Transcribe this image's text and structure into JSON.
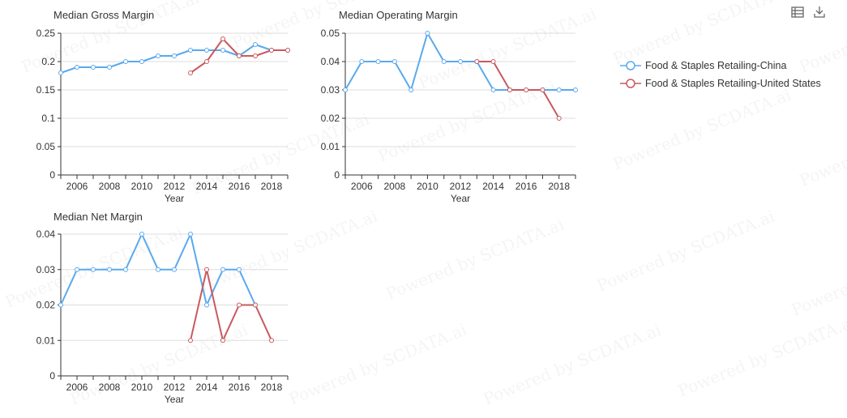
{
  "watermark": "Powered by SCDATA.ai",
  "toolbox": {
    "data_view_icon": "table-icon",
    "save_icon": "download-icon"
  },
  "legend": [
    {
      "label": "Food & Staples Retailing-China",
      "color": "#5aa9ee"
    },
    {
      "label": "Food & Staples Retailing-United States",
      "color": "#c85a5e"
    }
  ],
  "chart_data": [
    {
      "type": "line",
      "title": "Median Gross Margin",
      "xlabel": "Year",
      "ylabel": "",
      "x_ticks": [
        2006,
        2008,
        2010,
        2012,
        2014,
        2016,
        2018
      ],
      "y_ticks": [
        "0",
        "0.05",
        "0.1",
        "0.15",
        "0.2",
        "0.25"
      ],
      "ylim": [
        0,
        0.25
      ],
      "xlim": [
        2005,
        2019
      ],
      "grid": true,
      "series": [
        {
          "name": "Food & Staples Retailing-China",
          "x": [
            2005,
            2006,
            2007,
            2008,
            2009,
            2010,
            2011,
            2012,
            2013,
            2014,
            2015,
            2016,
            2017,
            2018,
            2019
          ],
          "values": [
            0.18,
            0.19,
            0.19,
            0.19,
            0.2,
            0.2,
            0.21,
            0.21,
            0.22,
            0.22,
            0.22,
            0.21,
            0.23,
            0.22,
            0.22
          ]
        },
        {
          "name": "Food & Staples Retailing-United States",
          "x": [
            2013,
            2014,
            2015,
            2016,
            2017,
            2018,
            2019
          ],
          "values": [
            0.18,
            0.2,
            0.24,
            0.21,
            0.21,
            0.22,
            0.22
          ]
        }
      ]
    },
    {
      "type": "line",
      "title": "Median Operating Margin",
      "xlabel": "Year",
      "ylabel": "",
      "x_ticks": [
        2006,
        2008,
        2010,
        2012,
        2014,
        2016,
        2018
      ],
      "y_ticks": [
        "0",
        "0.01",
        "0.02",
        "0.03",
        "0.04",
        "0.05"
      ],
      "ylim": [
        0,
        0.05
      ],
      "xlim": [
        2005,
        2019
      ],
      "grid": true,
      "series": [
        {
          "name": "Food & Staples Retailing-China",
          "x": [
            2005,
            2006,
            2007,
            2008,
            2009,
            2010,
            2011,
            2012,
            2013,
            2014,
            2015,
            2016,
            2017,
            2018,
            2019
          ],
          "values": [
            0.03,
            0.04,
            0.04,
            0.04,
            0.03,
            0.05,
            0.04,
            0.04,
            0.04,
            0.03,
            0.03,
            0.03,
            0.03,
            0.03,
            0.03
          ]
        },
        {
          "name": "Food & Staples Retailing-United States",
          "x": [
            2013,
            2014,
            2015,
            2016,
            2017,
            2018
          ],
          "values": [
            0.04,
            0.04,
            0.03,
            0.03,
            0.03,
            0.02
          ]
        }
      ]
    },
    {
      "type": "line",
      "title": "Median Net Margin",
      "xlabel": "Year",
      "ylabel": "",
      "x_ticks": [
        2006,
        2008,
        2010,
        2012,
        2014,
        2016,
        2018
      ],
      "y_ticks": [
        "0",
        "0.01",
        "0.02",
        "0.03",
        "0.04"
      ],
      "ylim": [
        0,
        0.04
      ],
      "xlim": [
        2005,
        2019
      ],
      "grid": true,
      "series": [
        {
          "name": "Food & Staples Retailing-China",
          "x": [
            2005,
            2006,
            2007,
            2008,
            2009,
            2010,
            2011,
            2012,
            2013,
            2014,
            2015,
            2016,
            2017
          ],
          "values": [
            0.02,
            0.03,
            0.03,
            0.03,
            0.03,
            0.04,
            0.03,
            0.03,
            0.04,
            0.02,
            0.03,
            0.03,
            0.02
          ]
        },
        {
          "name": "Food & Staples Retailing-United States",
          "x": [
            2013,
            2014,
            2015,
            2016,
            2017,
            2018
          ],
          "values": [
            0.01,
            0.03,
            0.01,
            0.02,
            0.02,
            0.01
          ]
        }
      ]
    }
  ]
}
